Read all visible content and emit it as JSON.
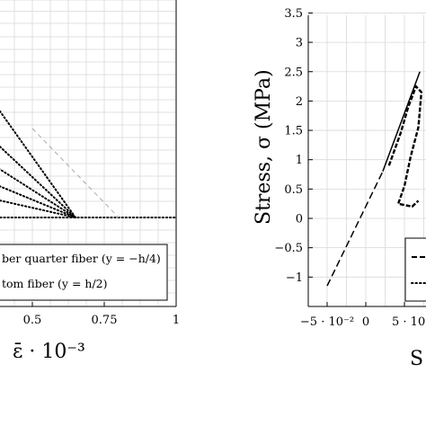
{
  "chart_data": [
    {
      "type": "line",
      "xlabel": "ε̄ · 10⁻³",
      "x_tick_labels": [
        "0.5",
        "0.75",
        "1"
      ],
      "xlim": [
        0.35,
        1.0
      ],
      "ylim": [
        0,
        1
      ],
      "grid": true,
      "legend_placement": "bottom",
      "legend": [
        {
          "label": "ber quarter fiber (y = −h/4)",
          "style": "dotted"
        },
        {
          "label": "tom fiber (y = h/2)",
          "style": "dotted"
        }
      ],
      "series": [
        {
          "style": "dotted",
          "x": [
            0.35,
            0.65
          ],
          "y": [
            0.75,
            0.0
          ]
        },
        {
          "style": "dotted",
          "x": [
            0.35,
            0.65
          ],
          "y": [
            0.5,
            0.0
          ]
        },
        {
          "style": "dotted",
          "x": [
            0.35,
            0.65
          ],
          "y": [
            0.34,
            0.0
          ]
        },
        {
          "style": "dotted",
          "x": [
            0.35,
            0.65
          ],
          "y": [
            0.22,
            0.0
          ]
        },
        {
          "style": "dotted",
          "x": [
            0.35,
            0.65
          ],
          "y": [
            0.12,
            0.0
          ]
        },
        {
          "style": "dotted",
          "x": [
            0.35,
            1.0
          ],
          "y": [
            0.0,
            0.0
          ]
        },
        {
          "style": "dashed-gray",
          "x": [
            0.5,
            0.8
          ],
          "y": [
            0.55,
            0.0
          ]
        }
      ]
    },
    {
      "type": "line",
      "ylabel": "Stress, σ (MPa)",
      "xlabel": "S",
      "y_ticks": [
        -1,
        -0.5,
        0,
        0.5,
        1,
        1.5,
        2,
        2.5,
        3,
        3.5
      ],
      "y_tick_labels": [
        "−1",
        "−0.5",
        "0",
        "0.5",
        "1",
        "1.5",
        "2",
        "2.5",
        "3",
        "3.5"
      ],
      "x_tick_labels": [
        "−5 · 10⁻²",
        "0",
        "5 · 10⁻"
      ],
      "xlim": [
        -0.06,
        0.2
      ],
      "ylim": [
        -1.5,
        3.5
      ],
      "grid": true,
      "legend_placement": "bottom-right",
      "series": [
        {
          "style": "dashed",
          "x": [
            -0.05,
            0.022
          ],
          "y": [
            -1.15,
            0.8
          ]
        },
        {
          "style": "solid",
          "x": [
            0.022,
            0.07
          ],
          "y": [
            0.8,
            2.5
          ]
        },
        {
          "style": "dense-dashed",
          "x": [
            0.03,
            0.045,
            0.055,
            0.065,
            0.072,
            0.068,
            0.058,
            0.05,
            0.042,
            0.06,
            0.068
          ],
          "y": [
            0.9,
            1.45,
            1.9,
            2.25,
            2.15,
            1.55,
            1.05,
            0.55,
            0.25,
            0.2,
            0.3
          ]
        }
      ]
    }
  ]
}
